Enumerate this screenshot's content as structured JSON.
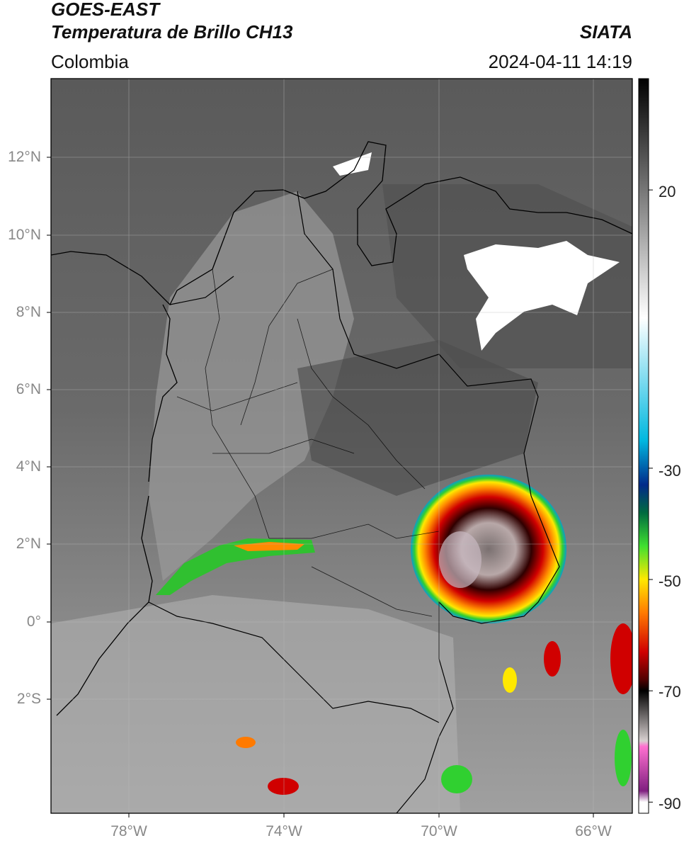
{
  "header": {
    "satellite": "GOES-EAST",
    "product": "Temperatura de Brillo CH13",
    "org": "SIATA",
    "region": "Colombia",
    "datetime": "2024-04-11 14:19"
  },
  "map": {
    "lat_labels": [
      "12°N",
      "10°N",
      "8°N",
      "6°N",
      "4°N",
      "2°N",
      "0°",
      "2°S"
    ],
    "lon_labels": [
      "78°W",
      "74°W",
      "70°W",
      "66°W"
    ],
    "extent": {
      "lon_min": -80,
      "lon_max": -65,
      "lat_min": -5,
      "lat_max": 14
    }
  },
  "colorbar": {
    "tick_labels": [
      "20",
      "-30",
      "-50",
      "-70",
      "-90"
    ],
    "range": [
      40,
      -92
    ],
    "stops": [
      {
        "t": 40,
        "color": "#000000"
      },
      {
        "t": -3,
        "color": "#ffffff"
      },
      {
        "t": -25,
        "color": "#00b8e0"
      },
      {
        "t": -33,
        "color": "#002a8a"
      },
      {
        "t": -38,
        "color": "#006a40"
      },
      {
        "t": -44,
        "color": "#40e030"
      },
      {
        "t": -50,
        "color": "#ffe800"
      },
      {
        "t": -56,
        "color": "#ff7a00"
      },
      {
        "t": -63,
        "color": "#d00000"
      },
      {
        "t": -68,
        "color": "#500000"
      },
      {
        "t": -70,
        "color": "#000000"
      },
      {
        "t": -79,
        "color": "#d8d0d0"
      },
      {
        "t": -80,
        "color": "#ff70d0"
      },
      {
        "t": -88,
        "color": "#802080"
      },
      {
        "t": -90,
        "color": "#ffffff"
      }
    ]
  }
}
